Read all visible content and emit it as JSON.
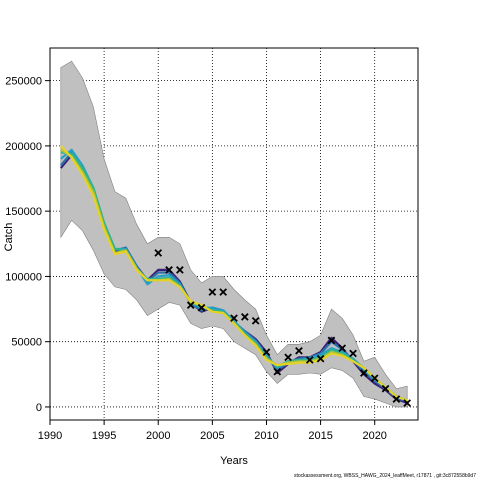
{
  "chart_data": {
    "type": "line",
    "xlabel": "Years",
    "ylabel": "Catch",
    "xlim": [
      1990,
      2024
    ],
    "ylim": [
      -10000,
      275000
    ],
    "x_ticks": [
      1990,
      1995,
      2000,
      2005,
      2010,
      2015,
      2020
    ],
    "y_ticks": [
      0,
      50000,
      100000,
      150000,
      200000,
      250000
    ],
    "grid": true,
    "footnote": "stockassessment.org, WBSS_HAWG_2024_leaffMeet, r17871 , git:3c872558b9d7",
    "colors": {
      "band": "#c0c0c0",
      "band_edge": "#808080",
      "observed": "#000000",
      "series": [
        "#3b1f77",
        "#2e6fa8",
        "#27a0c8",
        "#2fb58d",
        "#a8c23a",
        "#e6d227"
      ]
    },
    "confidence_band": {
      "x": [
        1991,
        1992,
        1993,
        1994,
        1995,
        1996,
        1997,
        1998,
        1999,
        2000,
        2001,
        2002,
        2003,
        2004,
        2005,
        2006,
        2007,
        2008,
        2009,
        2010,
        2011,
        2012,
        2013,
        2014,
        2015,
        2016,
        2017,
        2018,
        2019,
        2020,
        2021,
        2022,
        2023
      ],
      "lower": [
        130000,
        143000,
        135000,
        120000,
        102000,
        92000,
        90000,
        82000,
        70000,
        75000,
        80000,
        78000,
        64000,
        60000,
        62000,
        60000,
        50000,
        45000,
        40000,
        27000,
        18000,
        25000,
        25000,
        26000,
        25000,
        30000,
        28000,
        22000,
        8000,
        6000,
        3000,
        0,
        0
      ],
      "upper": [
        260000,
        265000,
        252000,
        230000,
        190000,
        165000,
        160000,
        140000,
        125000,
        130000,
        130000,
        125000,
        105000,
        95000,
        100000,
        100000,
        90000,
        82000,
        75000,
        55000,
        40000,
        48000,
        48000,
        50000,
        55000,
        75000,
        68000,
        55000,
        35000,
        38000,
        25000,
        14000,
        16000
      ]
    },
    "series": [
      {
        "values": [
          183000,
          193000,
          180000,
          163000,
          138000,
          119000,
          122000,
          108000,
          97000,
          105000,
          105000,
          96000,
          80000,
          73000,
          76000,
          74000,
          65000,
          58000,
          52000,
          42000,
          26000,
          33000,
          38000,
          38000,
          42000,
          53000,
          45000,
          35000,
          25000,
          18000,
          13000,
          6000,
          3000
        ]
      },
      {
        "values": [
          185000,
          195000,
          182000,
          165000,
          140000,
          120000,
          122000,
          108000,
          96000,
          103000,
          103000,
          95000,
          79000,
          74000,
          76000,
          74000,
          65000,
          58000,
          51000,
          40000,
          28000,
          34000,
          37000,
          38000,
          41000,
          50000,
          44000,
          36000,
          27000,
          20000,
          14000,
          7000,
          4000
        ]
      },
      {
        "values": [
          190000,
          197000,
          185000,
          168000,
          141000,
          121000,
          121000,
          107000,
          94000,
          100000,
          101000,
          94000,
          80000,
          76000,
          76000,
          74000,
          66000,
          57000,
          50000,
          39000,
          30000,
          35000,
          36000,
          37000,
          40000,
          45000,
          42000,
          37000,
          29000,
          21000,
          15000,
          8000,
          5000
        ]
      },
      {
        "values": [
          195000,
          194000,
          183000,
          168000,
          141000,
          121000,
          120000,
          106000,
          98000,
          98000,
          99000,
          93000,
          80000,
          77000,
          74000,
          73000,
          65000,
          56000,
          49000,
          38000,
          31000,
          35000,
          36000,
          36000,
          38000,
          44000,
          41000,
          36000,
          30000,
          22000,
          15000,
          8000,
          5000
        ]
      },
      {
        "values": [
          197000,
          192000,
          180000,
          165000,
          138000,
          118000,
          120000,
          106000,
          97000,
          97000,
          98000,
          92000,
          80000,
          78000,
          73000,
          72000,
          64000,
          55000,
          48000,
          37000,
          32000,
          34000,
          35000,
          35000,
          37000,
          42000,
          40000,
          35000,
          30000,
          22000,
          15000,
          8000,
          5000
        ]
      },
      {
        "values": [
          200000,
          191000,
          178000,
          162000,
          136000,
          117000,
          119000,
          105000,
          97000,
          97000,
          97000,
          92000,
          81000,
          78000,
          73000,
          72000,
          64000,
          55000,
          47000,
          36000,
          32000,
          33000,
          34000,
          34000,
          36000,
          41000,
          39000,
          35000,
          30000,
          22000,
          15000,
          8000,
          5000
        ]
      }
    ],
    "observed": {
      "x": [
        2000,
        2001,
        2002,
        2003,
        2004,
        2005,
        2006,
        2007,
        2008,
        2009,
        2010,
        2011,
        2012,
        2013,
        2014,
        2015,
        2016,
        2017,
        2018,
        2019,
        2020,
        2021,
        2022,
        2023
      ],
      "y": [
        118000,
        105000,
        105000,
        78000,
        76000,
        88000,
        88000,
        68000,
        69000,
        66000,
        42000,
        27000,
        38000,
        43000,
        36000,
        37000,
        51000,
        45000,
        41000,
        26000,
        22000,
        14000,
        6000,
        3000
      ]
    }
  }
}
